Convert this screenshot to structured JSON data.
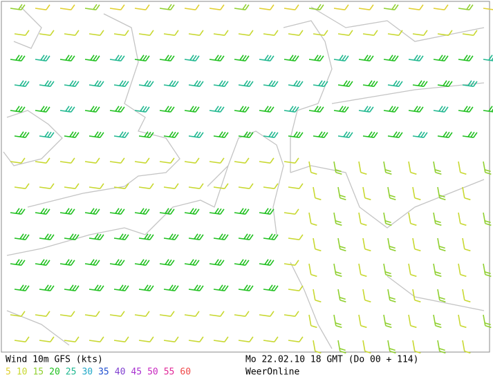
{
  "header": {
    "title": "Wind 10m GFS (kts)",
    "run": "Mo 22.02.10 18 GMT (Do 00 + 114)",
    "source": "WeerOnline"
  },
  "legend": {
    "values": [
      5,
      10,
      15,
      20,
      25,
      30,
      35,
      40,
      45,
      50,
      55,
      60
    ],
    "colors": [
      "#e0d030",
      "#c8d830",
      "#90d030",
      "#20c020",
      "#20b890",
      "#20a8c8",
      "#2050d0",
      "#8040d0",
      "#a830d0",
      "#c828c0",
      "#e02898",
      "#f04848"
    ]
  }
}
